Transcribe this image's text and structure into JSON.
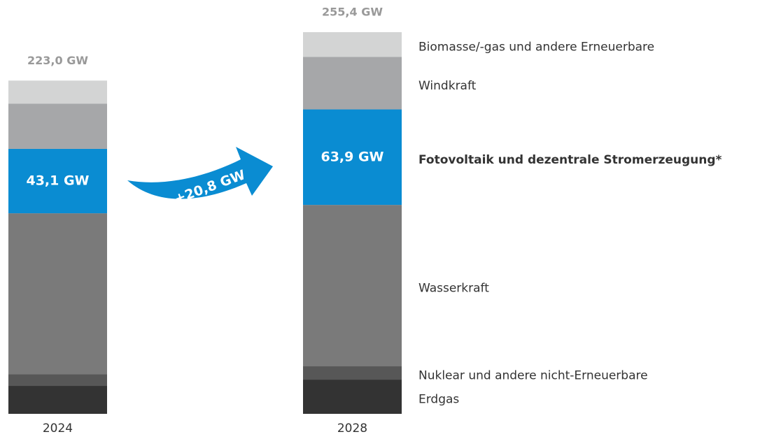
{
  "chart_data": {
    "type": "stacked-bar",
    "categories": [
      "2024",
      "2028"
    ],
    "totals": [
      223.0,
      255.4
    ],
    "total_labels": [
      "223,0 GW",
      "255,4 GW"
    ],
    "series": [
      {
        "name": "Erdgas",
        "color": "#333333",
        "values": [
          18.7,
          22.9
        ]
      },
      {
        "name": "Nuklear und andere nicht-Erneuerbare",
        "color": "#575757",
        "values": [
          7.9,
          8.9
        ]
      },
      {
        "name": "Wasserkraft",
        "color": "#7a7a7a",
        "values": [
          107.6,
          108.0
        ]
      },
      {
        "name": "Fotovoltaik und dezentrale Stromerzeugung*",
        "color": "#0a8cd2",
        "bold": true,
        "values": [
          43.1,
          63.9
        ],
        "value_labels": [
          "43,1 GW",
          "63,9 GW"
        ]
      },
      {
        "name": "Windkraft",
        "color": "#a6a7a9",
        "values": [
          30.3,
          35.1
        ]
      },
      {
        "name": "Biomasse/-gas und andere Erneuerbare",
        "color": "#d3d4d4",
        "values": [
          15.4,
          16.6
        ]
      }
    ],
    "annotation": "+20,8 GW"
  }
}
